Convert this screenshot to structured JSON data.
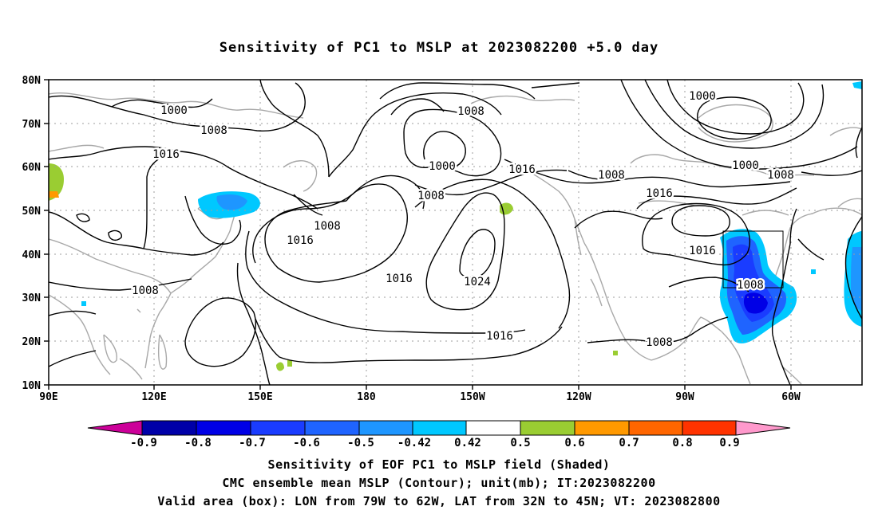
{
  "title": "Sensitivity of PC1 to MSLP at 2023082200 +5.0 day",
  "map": {
    "lat_ticks": [
      "80N",
      "70N",
      "60N",
      "50N",
      "40N",
      "30N",
      "20N",
      "10N"
    ],
    "lon_ticks": [
      "90E",
      "120E",
      "150E",
      "180",
      "150W",
      "120W",
      "90W",
      "60W"
    ],
    "contour_labels": [
      "1000",
      "1008",
      "1016",
      "1000",
      "1008",
      "1000",
      "1016",
      "1008",
      "1000",
      "1008",
      "1016",
      "1008",
      "1016",
      "1016",
      "1024",
      "1016",
      "1008",
      "1016",
      "1008",
      "1008"
    ],
    "valid_box": {
      "lon_from": "79W",
      "lon_to": "62W",
      "lat_from": "32N",
      "lat_to": "45N"
    }
  },
  "colorbar": {
    "labels": [
      "-0.9",
      "-0.8",
      "-0.7",
      "-0.6",
      "-0.5",
      "-0.42",
      "0.42",
      "0.5",
      "0.6",
      "0.7",
      "0.8",
      "0.9"
    ],
    "colors": [
      "#cc0099",
      "#0000a8",
      "#0000e6",
      "#1a3cff",
      "#1f64ff",
      "#1e96ff",
      "#00c8ff",
      "#ffffff",
      "#9acd32",
      "#ff9900",
      "#ff6600",
      "#ff3300",
      "#ff0000",
      "#ff99cc"
    ]
  },
  "captions": {
    "line1": "Sensitivity of EOF PC1 to MSLP field (Shaded)",
    "line2": "CMC ensemble mean MSLP (Contour); unit(mb); IT:2023082200",
    "line3": "Valid area (box): LON from 79W to 62W, LAT from 32N to 45N; VT: 2023082800"
  }
}
